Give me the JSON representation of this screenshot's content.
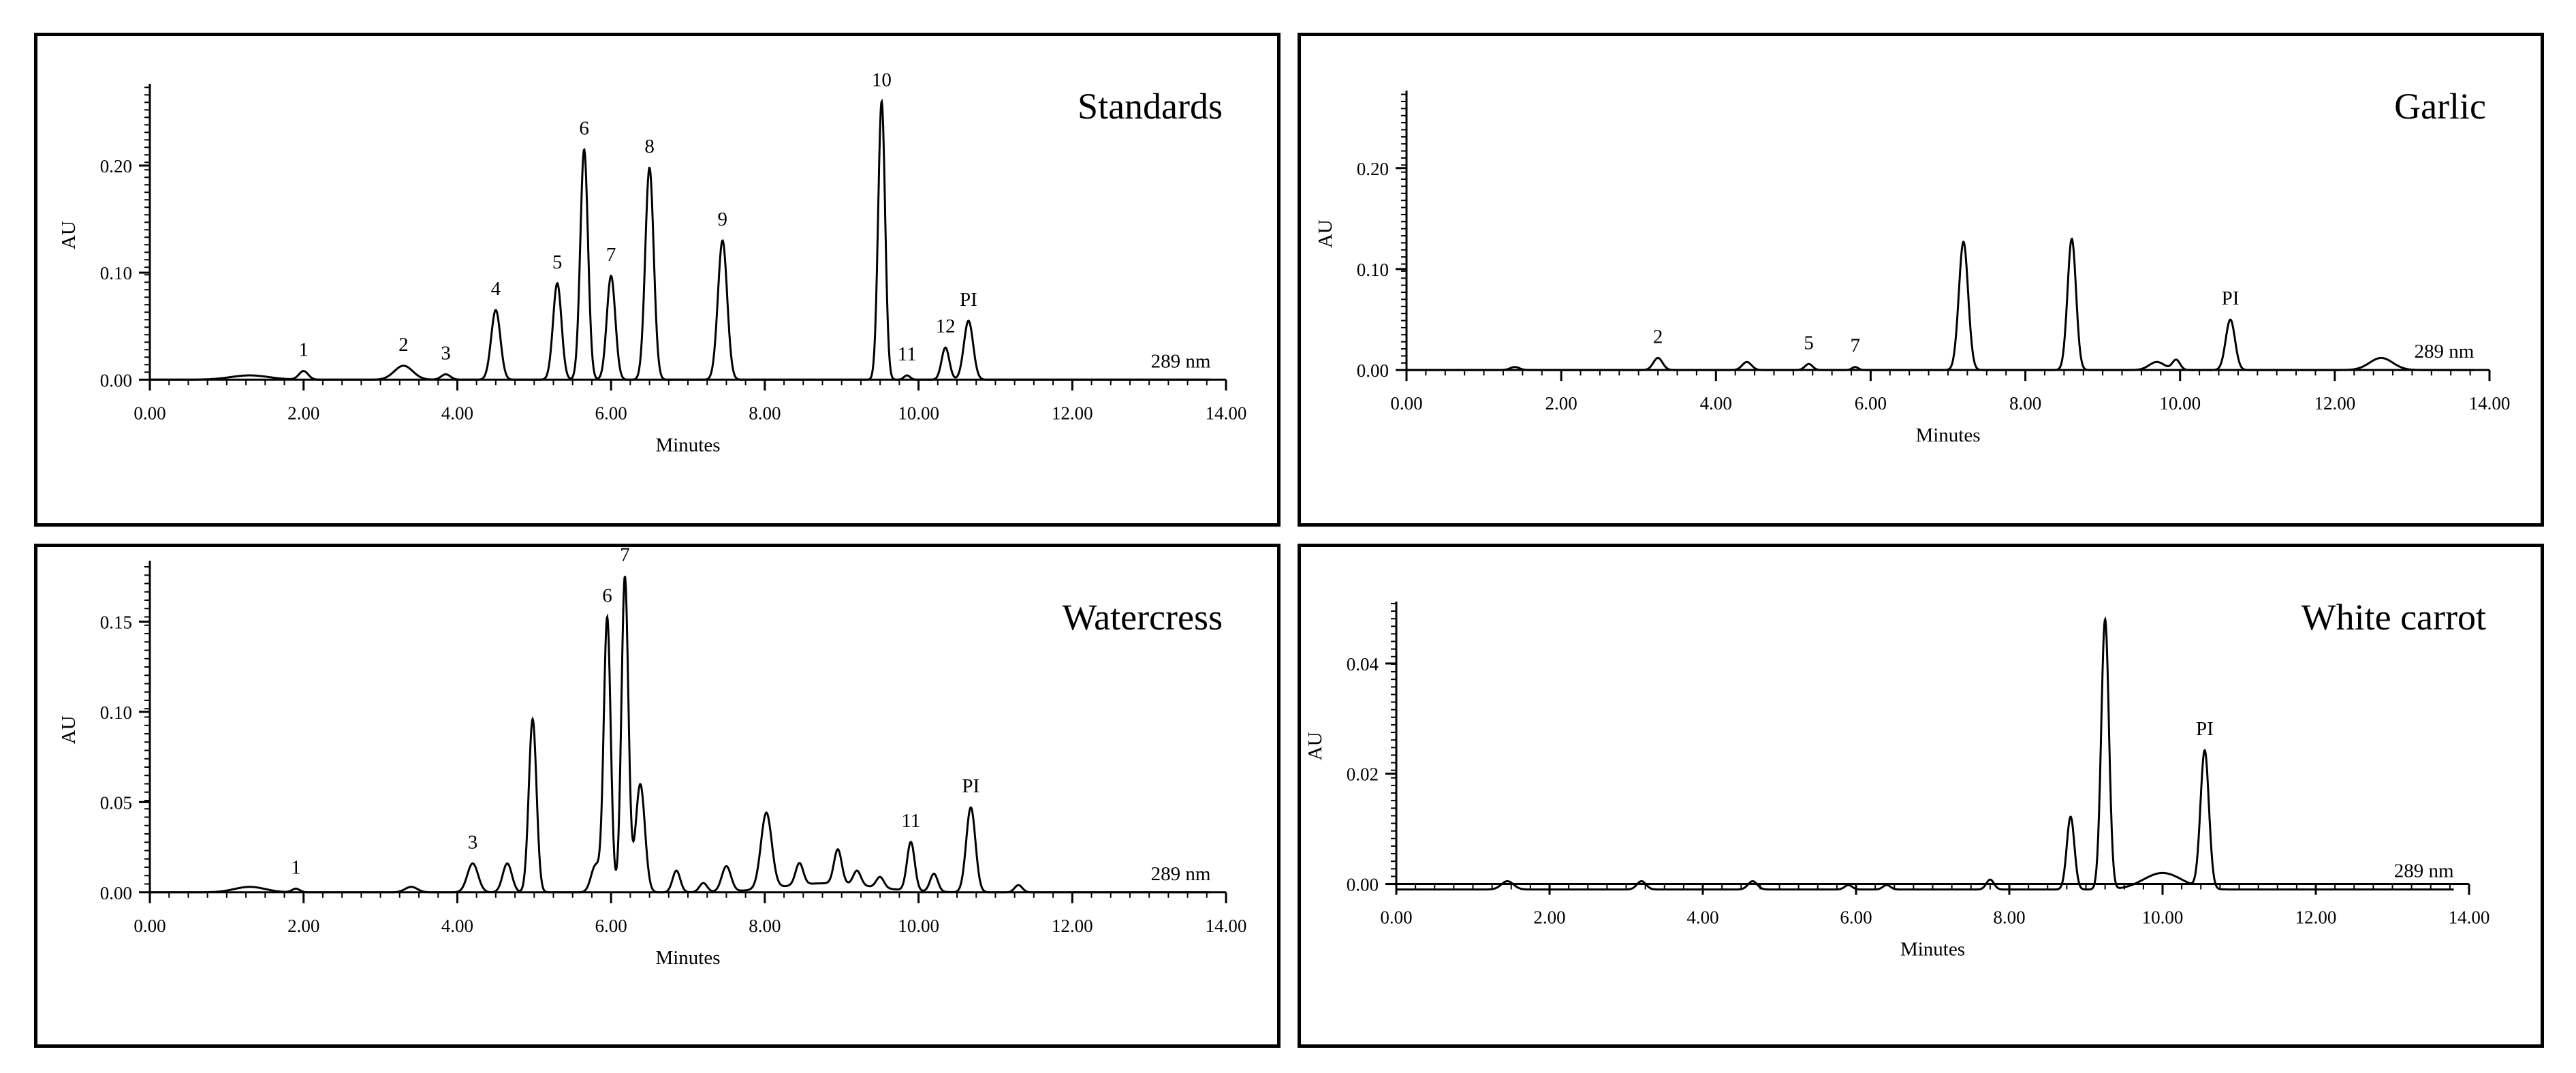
{
  "chart_data": [
    {
      "type": "line",
      "title": "Standards",
      "xlabel": "Minutes",
      "ylabel": "AU",
      "xlim": [
        0,
        14
      ],
      "ylim": [
        -0.01,
        0.27
      ],
      "xticks": [
        "0.00",
        "2.00",
        "4.00",
        "6.00",
        "8.00",
        "10.00",
        "12.00",
        "14.00"
      ],
      "yticks": [
        "0.00",
        "0.10",
        "0.20"
      ],
      "yticks_values": [
        0.0,
        0.1,
        0.2
      ],
      "wavelength_label": "289 nm",
      "baseline": 0.0,
      "broad_features": [
        {
          "x": 1.3,
          "h": 0.004,
          "w": 0.25
        }
      ],
      "peaks": [
        {
          "label": "1",
          "x": 2.0,
          "h": 0.008,
          "w": 0.06
        },
        {
          "label": "2",
          "x": 3.3,
          "h": 0.013,
          "w": 0.12
        },
        {
          "label": "3",
          "x": 3.85,
          "h": 0.005,
          "w": 0.06
        },
        {
          "label": "4",
          "x": 4.5,
          "h": 0.065,
          "w": 0.06
        },
        {
          "label": "5",
          "x": 5.3,
          "h": 0.09,
          "w": 0.055
        },
        {
          "label": "6",
          "x": 5.65,
          "h": 0.215,
          "w": 0.05
        },
        {
          "label": "7",
          "x": 6.0,
          "h": 0.097,
          "w": 0.055
        },
        {
          "label": "8",
          "x": 6.5,
          "h": 0.198,
          "w": 0.055
        },
        {
          "label": "9",
          "x": 7.45,
          "h": 0.13,
          "w": 0.06
        },
        {
          "label": "10",
          "x": 9.52,
          "h": 0.26,
          "w": 0.045
        },
        {
          "label": "11",
          "x": 9.85,
          "h": 0.004,
          "w": 0.04
        },
        {
          "label": "12",
          "x": 10.35,
          "h": 0.03,
          "w": 0.05
        },
        {
          "label": "PI",
          "x": 10.65,
          "h": 0.055,
          "w": 0.06
        }
      ]
    },
    {
      "type": "line",
      "title": "Garlic",
      "xlabel": "Minutes",
      "ylabel": "AU",
      "xlim": [
        0,
        14
      ],
      "ylim": [
        -0.01,
        0.27
      ],
      "xticks": [
        "0.00",
        "2.00",
        "4.00",
        "6.00",
        "8.00",
        "10.00",
        "12.00",
        "14.00"
      ],
      "yticks": [
        "0.00",
        "0.10",
        "0.20"
      ],
      "yticks_values": [
        0.0,
        0.1,
        0.2
      ],
      "wavelength_label": "289 nm",
      "baseline": 0.0,
      "broad_features": [
        {
          "x": 12.6,
          "h": 0.012,
          "w": 0.15
        },
        {
          "x": 9.7,
          "h": 0.008,
          "w": 0.1
        }
      ],
      "peaks": [
        {
          "label": "",
          "x": 1.4,
          "h": 0.003,
          "w": 0.06
        },
        {
          "label": "2",
          "x": 3.25,
          "h": 0.012,
          "w": 0.06
        },
        {
          "label": "",
          "x": 4.4,
          "h": 0.008,
          "w": 0.06
        },
        {
          "label": "5",
          "x": 5.2,
          "h": 0.006,
          "w": 0.05
        },
        {
          "label": "7",
          "x": 5.8,
          "h": 0.003,
          "w": 0.04
        },
        {
          "label": "",
          "x": 7.2,
          "h": 0.127,
          "w": 0.06
        },
        {
          "label": "",
          "x": 8.6,
          "h": 0.13,
          "w": 0.055
        },
        {
          "label": "",
          "x": 9.95,
          "h": 0.01,
          "w": 0.05
        },
        {
          "label": "PI",
          "x": 10.65,
          "h": 0.05,
          "w": 0.06
        }
      ]
    },
    {
      "type": "line",
      "title": "Watercress",
      "xlabel": "Minutes",
      "ylabel": "AU",
      "xlim": [
        0,
        14
      ],
      "ylim": [
        -0.005,
        0.18
      ],
      "xticks": [
        "0.00",
        "2.00",
        "4.00",
        "6.00",
        "8.00",
        "10.00",
        "12.00",
        "14.00"
      ],
      "yticks": [
        "0.00",
        "0.05",
        "0.10",
        "0.15"
      ],
      "yticks_values": [
        0.0,
        0.05,
        0.1,
        0.15
      ],
      "wavelength_label": "289 nm",
      "baseline": 0.0,
      "broad_features": [
        {
          "x": 1.3,
          "h": 0.003,
          "w": 0.2
        },
        {
          "x": 8.8,
          "h": 0.005,
          "w": 0.6
        }
      ],
      "peaks": [
        {
          "label": "1",
          "x": 1.9,
          "h": 0.002,
          "w": 0.05
        },
        {
          "label": "",
          "x": 3.4,
          "h": 0.003,
          "w": 0.08
        },
        {
          "label": "3",
          "x": 4.2,
          "h": 0.016,
          "w": 0.07
        },
        {
          "label": "",
          "x": 4.65,
          "h": 0.016,
          "w": 0.06
        },
        {
          "label": "",
          "x": 4.98,
          "h": 0.096,
          "w": 0.05
        },
        {
          "label": "",
          "x": 5.8,
          "h": 0.015,
          "w": 0.06
        },
        {
          "label": "6",
          "x": 5.95,
          "h": 0.152,
          "w": 0.045
        },
        {
          "label": "7",
          "x": 6.18,
          "h": 0.175,
          "w": 0.045
        },
        {
          "label": "",
          "x": 6.38,
          "h": 0.06,
          "w": 0.06
        },
        {
          "label": "",
          "x": 6.85,
          "h": 0.012,
          "w": 0.05
        },
        {
          "label": "",
          "x": 7.2,
          "h": 0.005,
          "w": 0.05
        },
        {
          "label": "",
          "x": 7.5,
          "h": 0.014,
          "w": 0.06
        },
        {
          "label": "",
          "x": 8.02,
          "h": 0.042,
          "w": 0.07
        },
        {
          "label": "",
          "x": 8.45,
          "h": 0.012,
          "w": 0.05
        },
        {
          "label": "",
          "x": 8.95,
          "h": 0.019,
          "w": 0.05
        },
        {
          "label": "",
          "x": 9.2,
          "h": 0.008,
          "w": 0.05
        },
        {
          "label": "",
          "x": 9.5,
          "h": 0.006,
          "w": 0.05
        },
        {
          "label": "11",
          "x": 9.9,
          "h": 0.027,
          "w": 0.05
        },
        {
          "label": "",
          "x": 10.2,
          "h": 0.01,
          "w": 0.05
        },
        {
          "label": "PI",
          "x": 10.68,
          "h": 0.047,
          "w": 0.06
        },
        {
          "label": "",
          "x": 11.3,
          "h": 0.004,
          "w": 0.05
        }
      ]
    },
    {
      "type": "line",
      "title": "White carrot",
      "xlabel": "Minutes",
      "ylabel": "AU",
      "xlim": [
        0,
        14
      ],
      "ylim": [
        -0.005,
        0.05
      ],
      "xticks": [
        "0.00",
        "2.00",
        "4.00",
        "6.00",
        "8.00",
        "10.00",
        "12.00",
        "14.00"
      ],
      "yticks": [
        "0.00",
        "0.02",
        "0.04"
      ],
      "yticks_values": [
        0.0,
        0.02,
        0.04
      ],
      "wavelength_label": "289 nm",
      "baseline": -0.001,
      "broad_features": [
        {
          "x": 10.0,
          "h": 0.003,
          "w": 0.25
        }
      ],
      "peaks": [
        {
          "label": "",
          "x": 1.45,
          "h": 0.0015,
          "w": 0.08
        },
        {
          "label": "",
          "x": 3.2,
          "h": 0.0015,
          "w": 0.06
        },
        {
          "label": "",
          "x": 4.65,
          "h": 0.0015,
          "w": 0.06
        },
        {
          "label": "",
          "x": 5.9,
          "h": 0.0008,
          "w": 0.05
        },
        {
          "label": "",
          "x": 6.4,
          "h": 0.0008,
          "w": 0.05
        },
        {
          "label": "",
          "x": 7.75,
          "h": 0.0018,
          "w": 0.05
        },
        {
          "label": "",
          "x": 8.8,
          "h": 0.0132,
          "w": 0.05
        },
        {
          "label": "",
          "x": 9.25,
          "h": 0.049,
          "w": 0.05
        },
        {
          "label": "PI",
          "x": 10.55,
          "h": 0.025,
          "w": 0.055
        }
      ]
    }
  ]
}
